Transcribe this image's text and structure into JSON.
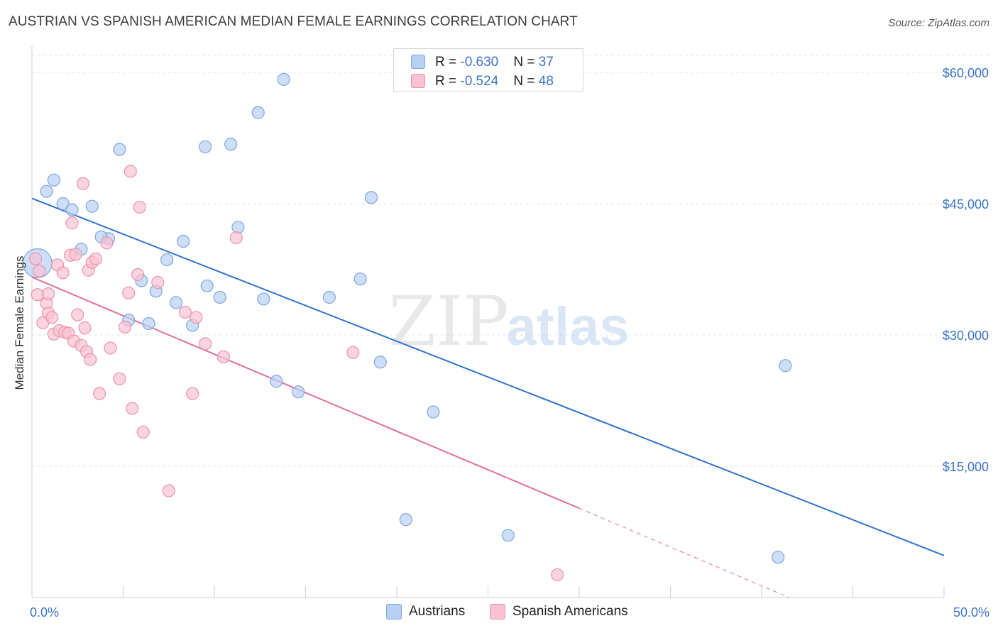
{
  "title": "AUSTRIAN VS SPANISH AMERICAN MEDIAN FEMALE EARNINGS CORRELATION CHART",
  "source": "Source: ZipAtlas.com",
  "watermark": {
    "zip": "ZIP",
    "atlas": "atlas"
  },
  "legend": {
    "austrians": {
      "r_label": "R = ",
      "r_value": "-0.630",
      "n_label": "N = ",
      "n_value": "37",
      "name": "Austrians"
    },
    "spanish": {
      "r_label": "R = ",
      "r_value": "-0.524",
      "n_label": "N = ",
      "n_value": "48",
      "name": "Spanish Americans"
    }
  },
  "colors": {
    "blue_fill": "#b8d0f3",
    "blue_stroke": "#7fa6de",
    "blue_line": "#2f73d0",
    "pink_fill": "#f8c2d2",
    "pink_stroke": "#eb93ad",
    "pink_line": "#e2709a",
    "axis_text": "#3b74c9",
    "grid": "#e4e4e4"
  },
  "chart_data": {
    "type": "scatter",
    "title": "AUSTRIAN VS SPANISH AMERICAN MEDIAN FEMALE EARNINGS CORRELATION CHART",
    "xlabel": "",
    "ylabel": "Median Female Earnings",
    "xlim": [
      0,
      50
    ],
    "ylim": [
      0,
      63000
    ],
    "x_tick_labels": [
      "0.0%",
      "50.0%"
    ],
    "y_ticks": [
      15000,
      30000,
      45000,
      60000
    ],
    "y_tick_labels": [
      "$15,000",
      "$30,000",
      "$45,000",
      "$60,000"
    ],
    "grid": true,
    "series": [
      {
        "name": "Austrians",
        "points": [
          [
            0.3,
            38200,
            2.4
          ],
          [
            0.8,
            46400,
            1
          ],
          [
            1.2,
            47700,
            1
          ],
          [
            1.7,
            45000,
            1
          ],
          [
            2.2,
            44300,
            1
          ],
          [
            3.3,
            44700,
            1
          ],
          [
            2.7,
            39800,
            1
          ],
          [
            4.2,
            41000,
            1
          ],
          [
            3.8,
            41200,
            1
          ],
          [
            4.8,
            51200,
            1
          ],
          [
            6.0,
            36200,
            1
          ],
          [
            5.3,
            31700,
            1
          ],
          [
            6.4,
            31300,
            1
          ],
          [
            6.8,
            35000,
            1
          ],
          [
            7.4,
            38600,
            1
          ],
          [
            7.9,
            33700,
            1
          ],
          [
            8.3,
            40700,
            1
          ],
          [
            8.8,
            31100,
            1
          ],
          [
            9.5,
            51500,
            1
          ],
          [
            9.6,
            35600,
            1
          ],
          [
            10.3,
            34300,
            1
          ],
          [
            10.9,
            51800,
            1
          ],
          [
            11.3,
            42300,
            1
          ],
          [
            12.4,
            55400,
            1
          ],
          [
            12.7,
            34100,
            1
          ],
          [
            13.4,
            24700,
            1
          ],
          [
            13.8,
            59200,
            1
          ],
          [
            14.6,
            23500,
            1
          ],
          [
            16.3,
            34300,
            1
          ],
          [
            18.0,
            36400,
            1
          ],
          [
            18.6,
            45700,
            1
          ],
          [
            19.1,
            26900,
            1
          ],
          [
            20.5,
            8900,
            1
          ],
          [
            22.0,
            21200,
            1
          ],
          [
            26.1,
            7100,
            1
          ],
          [
            41.3,
            26500,
            1
          ],
          [
            40.9,
            4600,
            1
          ]
        ],
        "trend": {
          "x0": 0,
          "y0": 45600,
          "x1": 50,
          "y1": 4800
        }
      },
      {
        "name": "Spanish Americans",
        "points": [
          [
            0.2,
            38700,
            1
          ],
          [
            0.4,
            37300,
            1
          ],
          [
            0.3,
            34600,
            1
          ],
          [
            0.6,
            31400,
            1
          ],
          [
            0.8,
            33600,
            1
          ],
          [
            0.9,
            34700,
            1
          ],
          [
            0.9,
            32500,
            1
          ],
          [
            1.1,
            32000,
            1
          ],
          [
            1.2,
            30100,
            1
          ],
          [
            1.4,
            38000,
            1
          ],
          [
            1.5,
            30500,
            1
          ],
          [
            1.7,
            37100,
            1
          ],
          [
            1.8,
            30300,
            1
          ],
          [
            2.0,
            30200,
            1
          ],
          [
            2.1,
            39100,
            1
          ],
          [
            2.2,
            42800,
            1
          ],
          [
            2.3,
            29300,
            1
          ],
          [
            2.4,
            39200,
            1
          ],
          [
            2.5,
            32300,
            1
          ],
          [
            2.7,
            28800,
            1
          ],
          [
            2.8,
            47300,
            1
          ],
          [
            2.9,
            30800,
            1
          ],
          [
            3.0,
            28100,
            1
          ],
          [
            3.1,
            37400,
            1
          ],
          [
            3.2,
            27200,
            1
          ],
          [
            3.3,
            38300,
            1
          ],
          [
            3.5,
            38700,
            1
          ],
          [
            3.7,
            23300,
            1
          ],
          [
            4.1,
            40500,
            1
          ],
          [
            4.3,
            28500,
            1
          ],
          [
            4.8,
            25000,
            1
          ],
          [
            5.1,
            30900,
            1
          ],
          [
            5.3,
            34800,
            1
          ],
          [
            5.4,
            48700,
            1
          ],
          [
            5.5,
            21600,
            1
          ],
          [
            5.8,
            36900,
            1
          ],
          [
            5.9,
            44600,
            1
          ],
          [
            6.1,
            18900,
            1
          ],
          [
            6.9,
            36000,
            1
          ],
          [
            7.5,
            12200,
            1
          ],
          [
            8.4,
            32600,
            1
          ],
          [
            8.8,
            23300,
            1
          ],
          [
            9.0,
            32000,
            1
          ],
          [
            9.5,
            29000,
            1
          ],
          [
            10.5,
            27500,
            1
          ],
          [
            11.2,
            41100,
            1
          ],
          [
            17.6,
            28000,
            1
          ],
          [
            28.8,
            2600,
            1
          ]
        ],
        "trend": {
          "x0": 0,
          "y0": 36600,
          "x1": 30,
          "y1": 10200,
          "dash_x1": 41.5,
          "dash_y1": 0
        }
      }
    ]
  }
}
